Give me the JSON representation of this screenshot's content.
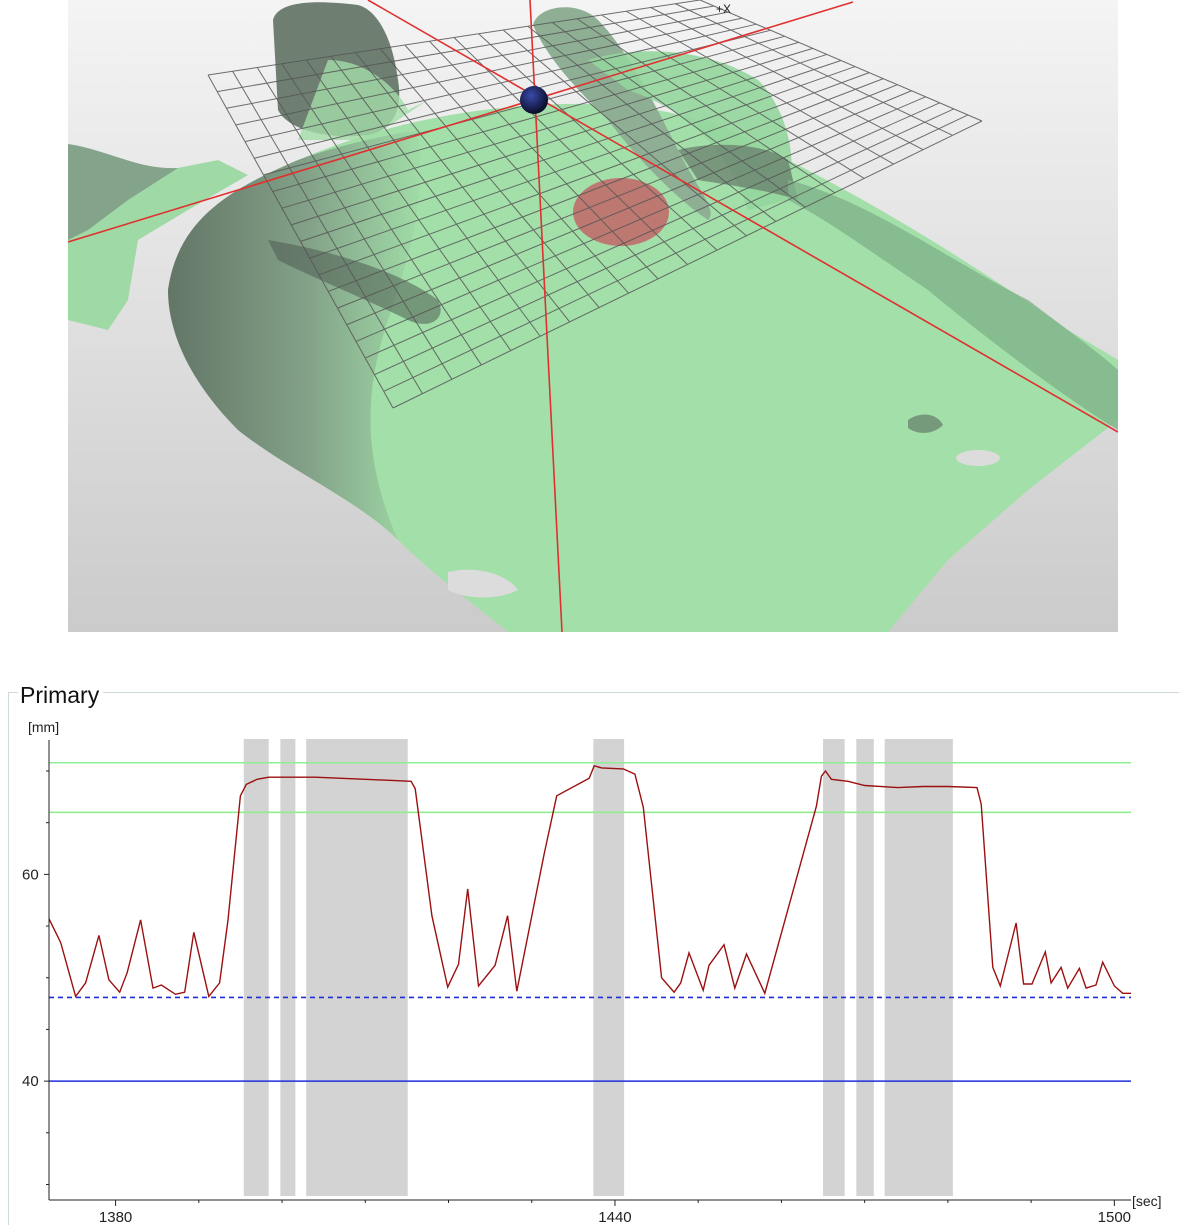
{
  "viewport3d": {
    "axis_label": "+X",
    "colors": {
      "background_top": "#f2f2f2",
      "background_bottom": "#cdcdcd",
      "surface": "#9fdca6",
      "surface_shadow": "#4d5b50",
      "grid": "#555555",
      "crosshair": "#e03030",
      "target_spot": "#c66a6a",
      "origin_sphere": "#101840"
    }
  },
  "panel": {
    "title": "Primary"
  },
  "chart_data": {
    "type": "line",
    "title": "",
    "ylabel": "[mm]",
    "xlabel": "[sec]",
    "xlim": [
      1372,
      1502
    ],
    "ylim": [
      28.5,
      73
    ],
    "x_ticks": [
      1380,
      1440,
      1500
    ],
    "y_ticks": [
      40,
      60
    ],
    "reference_lines": [
      {
        "y": 70.8,
        "color": "#90ee90",
        "style": "solid"
      },
      {
        "y": 66.0,
        "color": "#90ee90",
        "style": "solid"
      },
      {
        "y": 48.1,
        "color": "#1f2fd8",
        "style": "dashed"
      },
      {
        "y": 40.0,
        "color": "#1f2fd8",
        "style": "solid"
      }
    ],
    "shaded_intervals": [
      [
        1395.4,
        1398.4
      ],
      [
        1399.8,
        1401.6
      ],
      [
        1402.9,
        1415.1
      ],
      [
        1437.4,
        1441.1
      ],
      [
        1465.0,
        1467.6
      ],
      [
        1469.0,
        1471.1
      ],
      [
        1472.4,
        1480.6
      ]
    ],
    "series": [
      {
        "color": "#9b1010",
        "x": [
          1372,
          1373.4,
          1375.2,
          1376.4,
          1378.0,
          1379.2,
          1380.5,
          1381.4,
          1383.0,
          1384.5,
          1385.5,
          1387.2,
          1388.3,
          1389.4,
          1391.2,
          1392.5,
          1393.5,
          1395.0,
          1395.7,
          1397.0,
          1398.4,
          1404.0,
          1410.0,
          1415.5,
          1416.0,
          1418.0,
          1419.9,
          1421.2,
          1422.3,
          1423.6,
          1425.6,
          1427.1,
          1428.2,
          1431.5,
          1433.0,
          1436.9,
          1437.5,
          1438.4,
          1441.0,
          1442.4,
          1443.4,
          1445.6,
          1447.1,
          1447.9,
          1448.9,
          1450.6,
          1451.3,
          1453.1,
          1454.4,
          1455.8,
          1458.0,
          1464.2,
          1464.8,
          1465.3,
          1466.0,
          1468.0,
          1470.0,
          1474.0,
          1477.0,
          1480.0,
          1483.5,
          1484.0,
          1485.4,
          1486.3,
          1488.2,
          1489.1,
          1490.1,
          1491.7,
          1492.4,
          1493.6,
          1494.4,
          1495.8,
          1496.6,
          1497.8,
          1498.6,
          1500.0,
          1501.0,
          1502.0
        ],
        "y": [
          55.7,
          53.4,
          48.2,
          49.5,
          54.1,
          49.8,
          48.6,
          50.5,
          55.6,
          49.0,
          49.3,
          48.4,
          48.6,
          54.4,
          48.2,
          49.5,
          55.5,
          67.6,
          68.7,
          69.2,
          69.4,
          69.4,
          69.2,
          69.0,
          68.3,
          56.0,
          49.1,
          51.3,
          58.6,
          49.2,
          51.2,
          56.0,
          48.7,
          62.0,
          67.6,
          69.3,
          70.5,
          70.3,
          70.2,
          69.7,
          66.5,
          50.0,
          48.6,
          49.5,
          52.4,
          48.8,
          51.2,
          53.2,
          49.0,
          52.3,
          48.5,
          66.6,
          69.5,
          70.0,
          69.2,
          69.0,
          68.6,
          68.4,
          68.5,
          68.5,
          68.4,
          66.8,
          51.0,
          49.2,
          55.3,
          49.4,
          49.4,
          52.5,
          49.5,
          51.0,
          49.0,
          50.9,
          49.0,
          49.3,
          51.5,
          49.2,
          48.5,
          48.5
        ]
      }
    ]
  }
}
